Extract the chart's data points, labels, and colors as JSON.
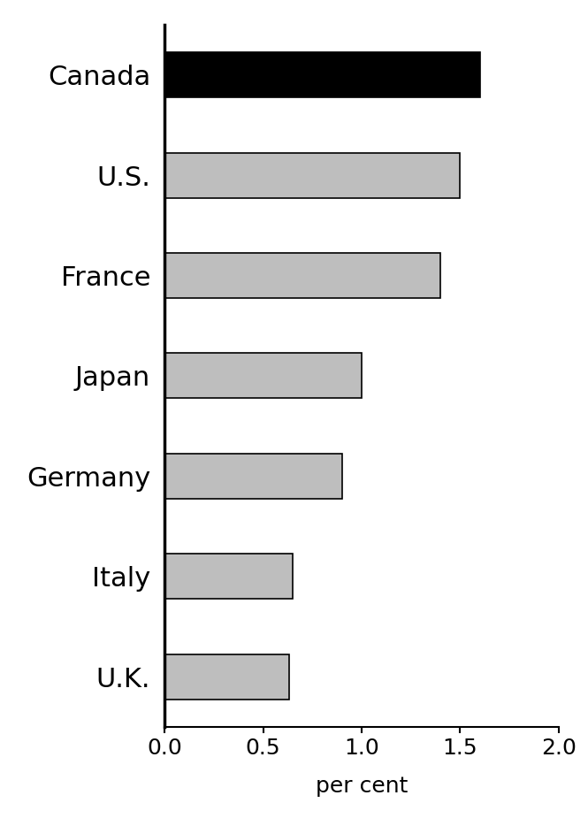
{
  "categories": [
    "Canada",
    "U.S.",
    "France",
    "Japan",
    "Germany",
    "Italy",
    "U.K."
  ],
  "values": [
    1.6,
    1.5,
    1.4,
    1.0,
    0.9,
    0.65,
    0.63
  ],
  "bar_colors": [
    "#000000",
    "#bebebe",
    "#bebebe",
    "#bebebe",
    "#bebebe",
    "#bebebe",
    "#bebebe"
  ],
  "bar_edgecolors": [
    "#000000",
    "#000000",
    "#000000",
    "#000000",
    "#000000",
    "#000000",
    "#000000"
  ],
  "xlabel": "per cent",
  "xlim": [
    0,
    2.0
  ],
  "xticks": [
    0.0,
    0.5,
    1.0,
    1.5,
    2.0
  ],
  "xticklabels": [
    "0.0",
    "0.5",
    "1.0",
    "1.5",
    "2.0"
  ],
  "background_color": "#ffffff",
  "tick_fontsize": 18,
  "label_fontsize": 18,
  "category_fontsize": 22,
  "bar_height": 0.45
}
